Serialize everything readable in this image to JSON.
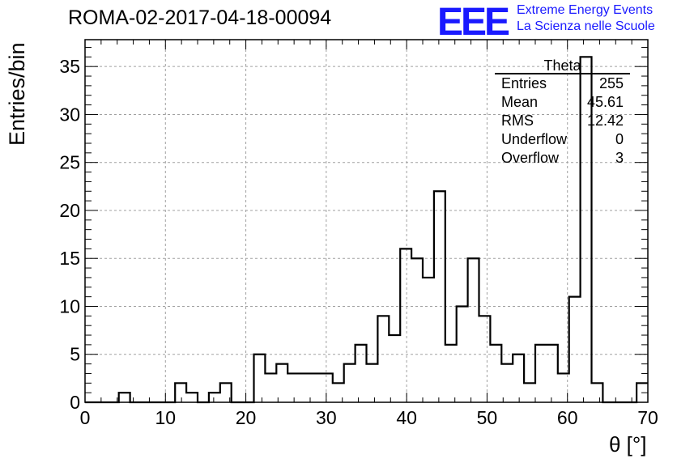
{
  "title": "ROMA-02-2017-04-18-00094",
  "logo": {
    "mark": "EEE",
    "line1": "Extreme Energy Events",
    "line2": "La Scienza nelle Scuole",
    "color": "#1a1aff"
  },
  "stats": {
    "name": "Theta",
    "rows": [
      {
        "label": "Entries",
        "value": "255"
      },
      {
        "label": "Mean",
        "value": "45.61"
      },
      {
        "label": "RMS",
        "value": "12.42"
      },
      {
        "label": "Underflow",
        "value": "0"
      },
      {
        "label": "Overflow",
        "value": "3"
      }
    ]
  },
  "chart_data": {
    "type": "histogram",
    "xlabel": "θ [°]",
    "ylabel": "Entries/bin",
    "xlim": [
      0,
      70
    ],
    "ylim": [
      0,
      37.8
    ],
    "grid": true,
    "bin_width": 1.4,
    "xticks": [
      0,
      10,
      20,
      30,
      40,
      50,
      60,
      70
    ],
    "yticks": [
      0,
      5,
      10,
      15,
      20,
      25,
      30,
      35
    ],
    "counts": [
      0,
      0,
      0,
      1,
      0,
      0,
      0,
      0,
      2,
      1,
      0,
      1,
      2,
      0,
      0,
      5,
      3,
      4,
      3,
      3,
      3,
      3,
      2,
      4,
      6,
      4,
      9,
      7,
      16,
      15,
      13,
      22,
      6,
      10,
      15,
      9,
      6,
      4,
      5,
      2,
      6,
      6,
      3,
      11,
      36,
      2,
      0,
      0,
      0,
      2
    ]
  }
}
